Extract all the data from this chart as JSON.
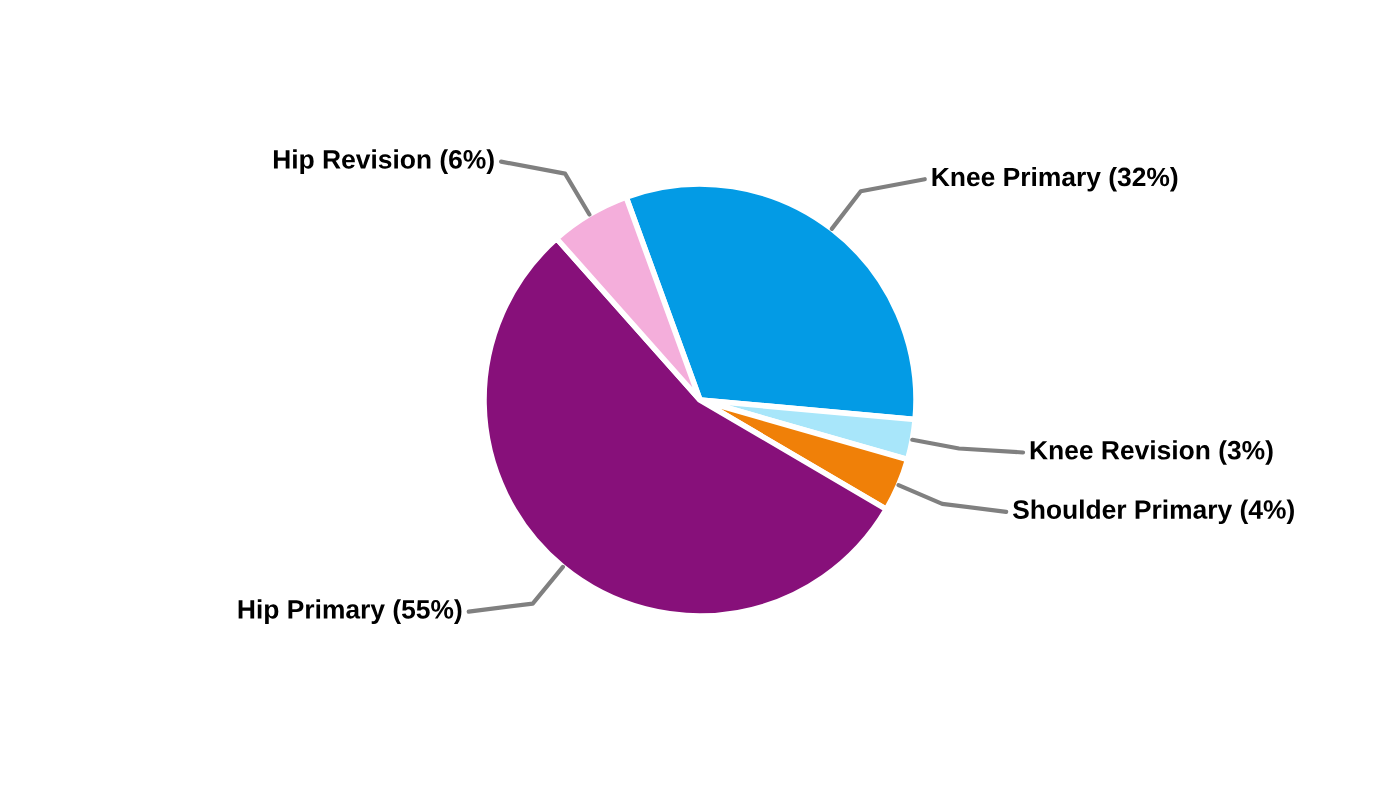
{
  "chart_data": {
    "type": "pie",
    "categories": [
      "Knee Primary (32%)",
      "Knee Revision (3%)",
      "Shoulder Primary (4%)",
      "Hip Primary (55%)",
      "Hip Revision (6%)"
    ],
    "values": [
      32,
      3,
      4,
      55,
      6
    ],
    "colors": [
      "#039be5",
      "#a8e6fa",
      "#f08008",
      "#87107a",
      "#f4aedb"
    ]
  }
}
